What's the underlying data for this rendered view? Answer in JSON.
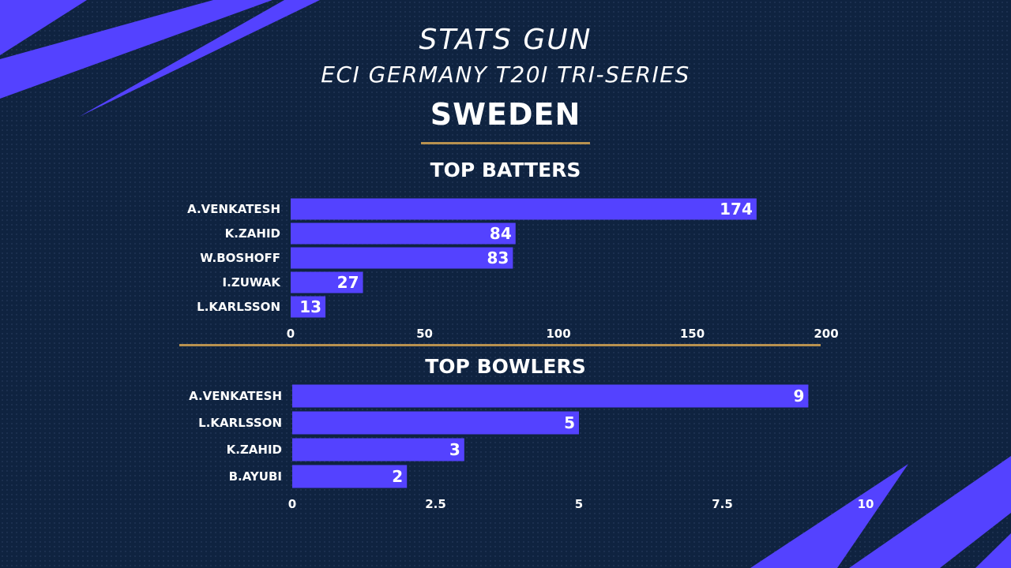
{
  "header": {
    "brand_title": "STATS GUN",
    "brand_subtitle": "ECI GERMANY T20I TRI-SERIES",
    "team": "SWEDEN"
  },
  "colors": {
    "background": "#0f2340",
    "bar": "#5442ff",
    "accent_stripes": "#5442ff",
    "gold_divider": "#b8914f",
    "text": "#ffffff"
  },
  "chart_data": [
    {
      "type": "bar",
      "orientation": "horizontal",
      "title": "TOP BATTERS",
      "categories": [
        "A.VENKATESH",
        "K.ZAHID",
        "W.BOSHOFF",
        "I.ZUWAK",
        "L.KARLSSON"
      ],
      "values": [
        174,
        84,
        83,
        27,
        13
      ],
      "xlim": [
        0,
        200
      ],
      "xticks": [
        0,
        50,
        100,
        150,
        200
      ],
      "xtick_labels": [
        "0",
        "50",
        "100",
        "150",
        "200"
      ],
      "grid": false,
      "data_labels": true
    },
    {
      "type": "bar",
      "orientation": "horizontal",
      "title": "TOP BOWLERS",
      "categories": [
        "A.VENKATESH",
        "L.KARLSSON",
        "K.ZAHID",
        "B.AYUBI"
      ],
      "values": [
        9,
        5,
        3,
        2
      ],
      "xlim": [
        0,
        10
      ],
      "xticks": [
        0,
        2.5,
        5,
        7.5,
        10
      ],
      "xtick_labels": [
        "0",
        "2.5",
        "5",
        "7.5",
        "10"
      ],
      "grid": false,
      "data_labels": true
    }
  ]
}
